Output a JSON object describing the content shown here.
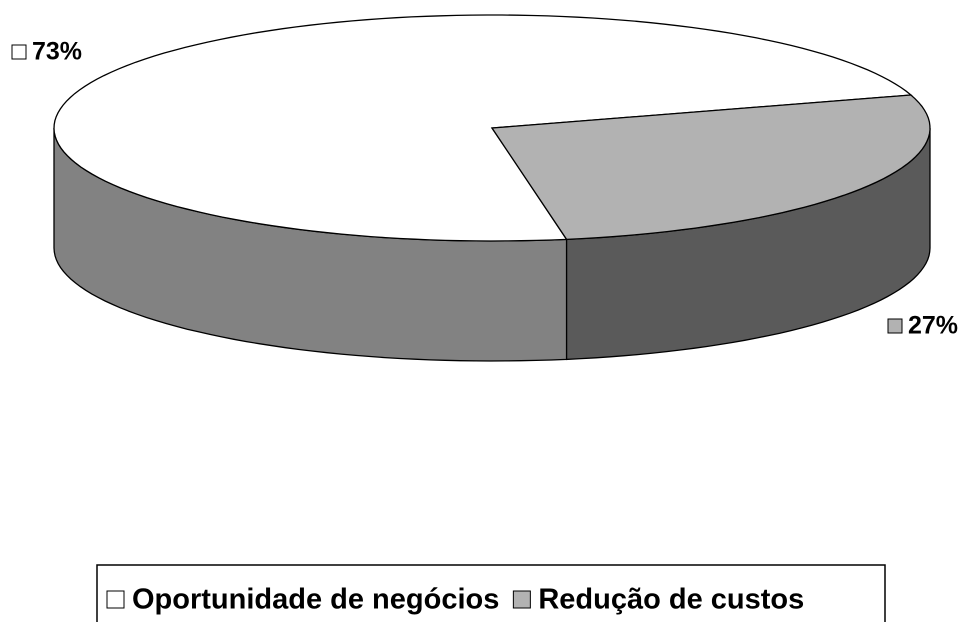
{
  "chart_data": {
    "type": "pie3d",
    "categories": [
      "Oportunidade de negócios",
      "Redução de custos"
    ],
    "values": [
      73,
      27
    ],
    "value_labels": [
      "73%",
      "27%"
    ],
    "colors": [
      "#ffffff",
      "#b2b2b2"
    ],
    "side_colors": [
      "#828282",
      "#5a5a5a"
    ],
    "legend": "bottom"
  }
}
